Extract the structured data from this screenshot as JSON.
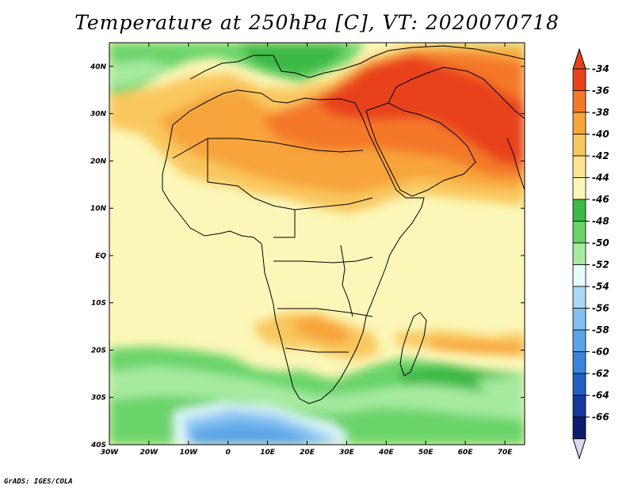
{
  "title": "Temperature at 250hPa [C], VT: 2020070718",
  "credit": "GrADS: IGES/COLA",
  "map": {
    "region": "Africa",
    "lat_range": [
      -40,
      45
    ],
    "lon_range": [
      -30,
      75
    ],
    "lat_ticks": [
      "40N",
      "30N",
      "20N",
      "10N",
      "EQ",
      "10S",
      "20S",
      "30S",
      "40S"
    ],
    "lon_ticks": [
      "30W",
      "20W",
      "10W",
      "0",
      "10E",
      "20E",
      "30E",
      "40E",
      "50E",
      "60E",
      "70E"
    ]
  },
  "colorbar": {
    "labels": [
      "-34",
      "-36",
      "-38",
      "-40",
      "-42",
      "-44",
      "-46",
      "-48",
      "-50",
      "-52",
      "-54",
      "-56",
      "-58",
      "-60",
      "-62",
      "-64",
      "-66"
    ],
    "colors": [
      "#e8421c",
      "#f4782a",
      "#f7a43a",
      "#f9c75f",
      "#fbe391",
      "#fbf7b8",
      "#3cb946",
      "#6ad46a",
      "#a6eaa0",
      "#e6fbfb",
      "#a9d7f4",
      "#82bff0",
      "#5aa4e8",
      "#3a84d9",
      "#2160c0",
      "#12399b",
      "#0c1c6e"
    ],
    "top_arrow_color": "#e8421c",
    "bottom_arrow_color": "#ddd6f2"
  }
}
